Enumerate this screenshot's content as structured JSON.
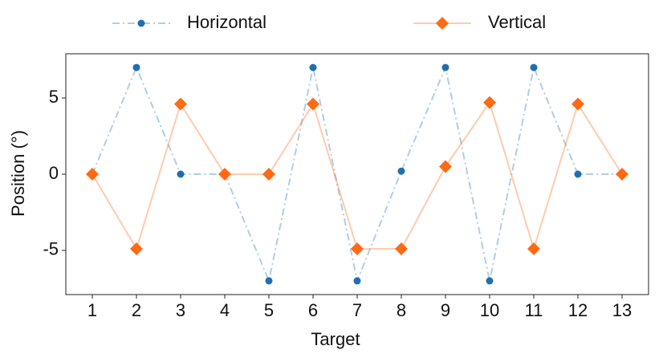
{
  "chart_data": {
    "type": "line",
    "x_label": "Target",
    "y_label": "Position (°)",
    "x": [
      1,
      2,
      3,
      4,
      5,
      6,
      7,
      8,
      9,
      10,
      11,
      12,
      13
    ],
    "xlim": [
      0.4,
      13.6
    ],
    "xticks": [
      1,
      2,
      3,
      4,
      5,
      6,
      7,
      8,
      9,
      10,
      11,
      12,
      13
    ],
    "ylim": [
      -7.9,
      7.9
    ],
    "yticks": [
      -5,
      0,
      5
    ],
    "series": [
      {
        "name": "Horizontal",
        "color": "#1f6fb0",
        "linestyle": "dashdot",
        "marker": "circle",
        "values": [
          0,
          7,
          0,
          0,
          -7,
          7,
          -7,
          0.2,
          7,
          -7,
          7,
          0,
          0
        ]
      },
      {
        "name": "Vertical",
        "color": "#ff6a13",
        "linestyle": "solid",
        "marker": "diamond",
        "values": [
          0,
          -4.9,
          4.6,
          0,
          0,
          4.6,
          -4.9,
          -4.9,
          0.5,
          4.7,
          -4.9,
          4.6,
          0
        ]
      }
    ]
  }
}
